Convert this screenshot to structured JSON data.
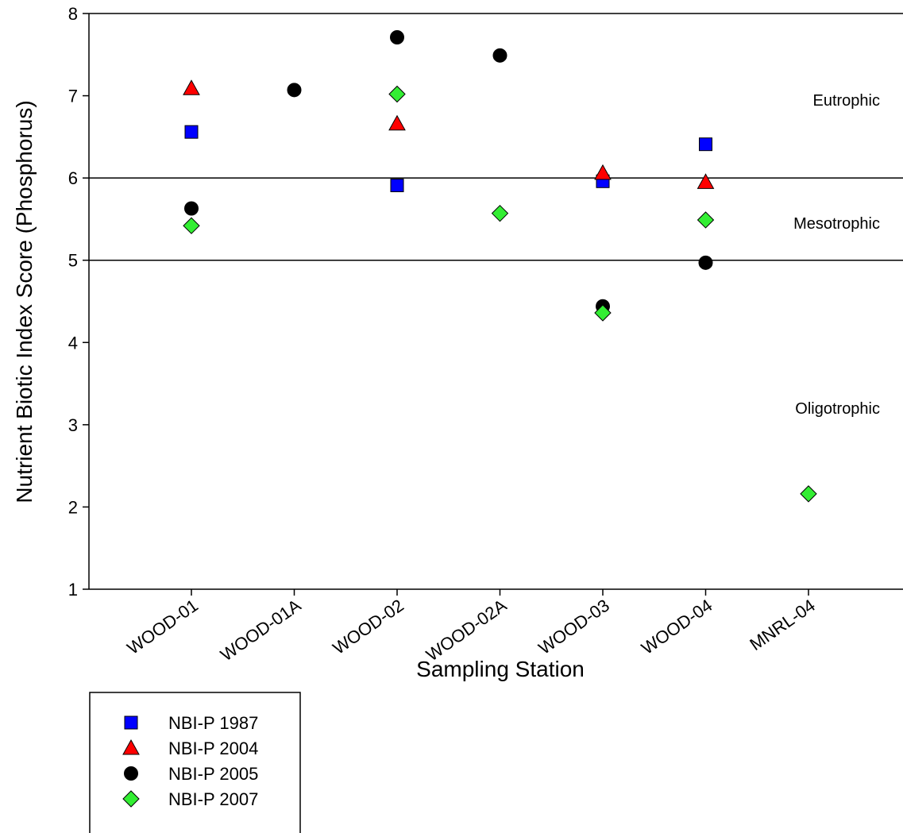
{
  "chart_data": {
    "type": "scatter",
    "xlabel": "Sampling Station",
    "ylabel": "Nutrient Biotic Index Score (Phosphorus)",
    "categories": [
      "WOOD-01",
      "WOOD-01A",
      "WOOD-02",
      "WOOD-02A",
      "WOOD-03",
      "WOOD-04",
      "MNRL-04"
    ],
    "ylim": [
      1,
      8
    ],
    "yticks": [
      1,
      2,
      3,
      4,
      5,
      6,
      7,
      8
    ],
    "grid": false,
    "reference_lines": [
      5,
      6
    ],
    "zones": [
      {
        "label": "Eutrophic",
        "y": 6.95
      },
      {
        "label": "Mesotrophic",
        "y": 5.45
      },
      {
        "label": "Oligotrophic",
        "y": 3.2
      }
    ],
    "legend_position": "bottom-left",
    "series": [
      {
        "name": "NBI-P 1987",
        "marker": "square",
        "color": "#0000ff",
        "values": [
          6.56,
          null,
          5.91,
          null,
          5.96,
          6.41,
          null
        ]
      },
      {
        "name": "NBI-P 2004",
        "marker": "triangle",
        "color": "#ff0000",
        "values": [
          7.09,
          null,
          6.66,
          null,
          6.06,
          5.95,
          null
        ]
      },
      {
        "name": "NBI-P 2005",
        "marker": "circle",
        "color": "#000000",
        "values": [
          5.63,
          7.07,
          7.71,
          7.49,
          4.44,
          4.97,
          null
        ]
      },
      {
        "name": "NBI-P 2007",
        "marker": "diamond",
        "color": "#33ee33",
        "values": [
          5.42,
          null,
          7.02,
          5.57,
          4.36,
          5.49,
          2.16
        ]
      }
    ]
  }
}
